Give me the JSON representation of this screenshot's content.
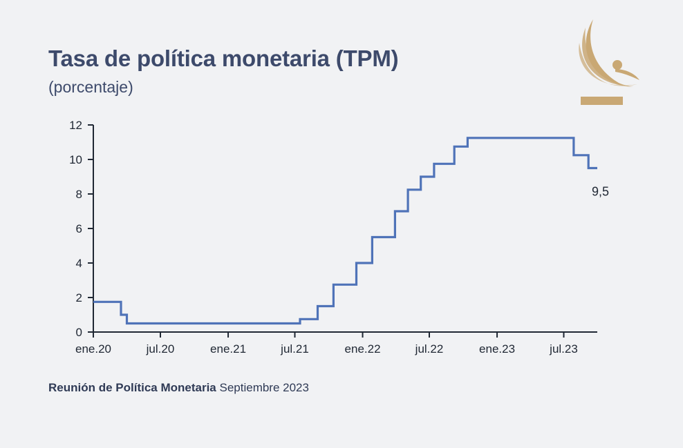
{
  "header": {
    "title": "Tasa de política monetaria (TPM)",
    "subtitle": "(porcentaje)"
  },
  "footer": {
    "bold": "Reunión de Política Monetaria",
    "regular": " Septiembre 2023"
  },
  "logo": {
    "icon": "central-bank-logo-icon",
    "color": "#c9a874"
  },
  "chart_data": {
    "type": "line",
    "line_shape": "step",
    "title": "Tasa de política monetaria (TPM)",
    "subtitle": "(porcentaje)",
    "color": "#4f73b8",
    "ylim": [
      0,
      12
    ],
    "yticks": [
      0,
      2,
      4,
      6,
      8,
      10,
      12
    ],
    "xlim": [
      "2020-01-01",
      "2023-09-30"
    ],
    "xtick_labels": [
      "ene.20",
      "jul.20",
      "ene.21",
      "jul.21",
      "ene.22",
      "jul.22",
      "ene.23",
      "jul.23"
    ],
    "xtick_dates": [
      "2020-01-01",
      "2020-07-01",
      "2021-01-01",
      "2021-07-01",
      "2022-01-01",
      "2022-07-01",
      "2023-01-01",
      "2023-07-01"
    ],
    "series": [
      {
        "dates": [
          "2020-01-01",
          "2020-03-16",
          "2020-04-01",
          "2021-07-15",
          "2021-09-01",
          "2021-10-14",
          "2021-12-15",
          "2022-01-27",
          "2022-03-30",
          "2022-05-04",
          "2022-06-08",
          "2022-07-14",
          "2022-09-07",
          "2022-10-13",
          "2023-07-28",
          "2023-09-06",
          "2023-09-30"
        ],
        "values": [
          1.75,
          1.0,
          0.5,
          0.75,
          1.5,
          2.75,
          4.0,
          5.5,
          7.0,
          8.25,
          9.0,
          9.75,
          10.75,
          11.25,
          10.25,
          9.5,
          9.5
        ]
      }
    ],
    "annotations": [
      {
        "text": "9,5"
      }
    ]
  }
}
